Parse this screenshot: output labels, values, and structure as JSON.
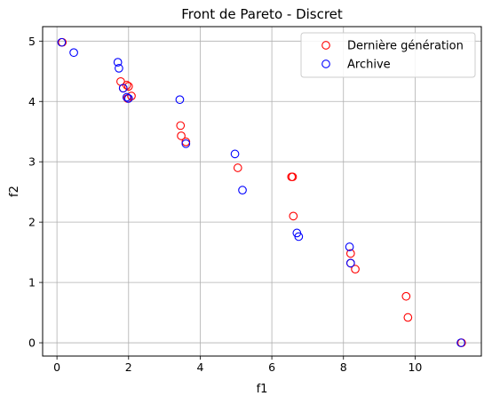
{
  "chart_data": {
    "type": "scatter",
    "title": "Front de Pareto - Discret",
    "xlabel": "f1",
    "ylabel": "f2",
    "xlim": [
      -0.4,
      11.85
    ],
    "ylim": [
      -0.22,
      5.24
    ],
    "xticks": [
      0,
      2,
      4,
      6,
      8,
      10
    ],
    "yticks": [
      0,
      1,
      2,
      3,
      4,
      5
    ],
    "xtick_labels": [
      "0",
      "2",
      "4",
      "6",
      "8",
      "10"
    ],
    "ytick_labels": [
      "0",
      "1",
      "2",
      "3",
      "4",
      "5"
    ],
    "grid": true,
    "legend_position": "top-right",
    "series": [
      {
        "name": "Dernière génération",
        "color": "#ff0000",
        "marker": "open-circle",
        "points": [
          [
            0.15,
            4.98
          ],
          [
            1.78,
            4.33
          ],
          [
            1.85,
            4.22
          ],
          [
            1.95,
            4.27
          ],
          [
            2.0,
            4.25
          ],
          [
            2.08,
            4.09
          ],
          [
            1.97,
            4.05
          ],
          [
            3.45,
            3.6
          ],
          [
            3.47,
            3.43
          ],
          [
            3.6,
            3.33
          ],
          [
            5.05,
            2.9
          ],
          [
            6.55,
            2.75
          ],
          [
            6.58,
            2.75
          ],
          [
            6.6,
            2.1
          ],
          [
            8.2,
            1.48
          ],
          [
            8.33,
            1.22
          ],
          [
            8.2,
            1.32
          ],
          [
            9.75,
            0.77
          ],
          [
            9.8,
            0.42
          ],
          [
            11.3,
            0.0
          ]
        ]
      },
      {
        "name": "Archive",
        "color": "#0000ff",
        "marker": "open-circle",
        "points": [
          [
            0.13,
            4.98
          ],
          [
            0.47,
            4.81
          ],
          [
            1.7,
            4.65
          ],
          [
            1.73,
            4.55
          ],
          [
            1.85,
            4.22
          ],
          [
            1.95,
            4.07
          ],
          [
            2.0,
            4.05
          ],
          [
            3.43,
            4.03
          ],
          [
            3.6,
            3.3
          ],
          [
            4.97,
            3.13
          ],
          [
            5.18,
            2.53
          ],
          [
            6.7,
            1.82
          ],
          [
            6.75,
            1.76
          ],
          [
            8.17,
            1.59
          ],
          [
            8.2,
            1.32
          ],
          [
            11.28,
            0.0
          ]
        ]
      }
    ]
  }
}
